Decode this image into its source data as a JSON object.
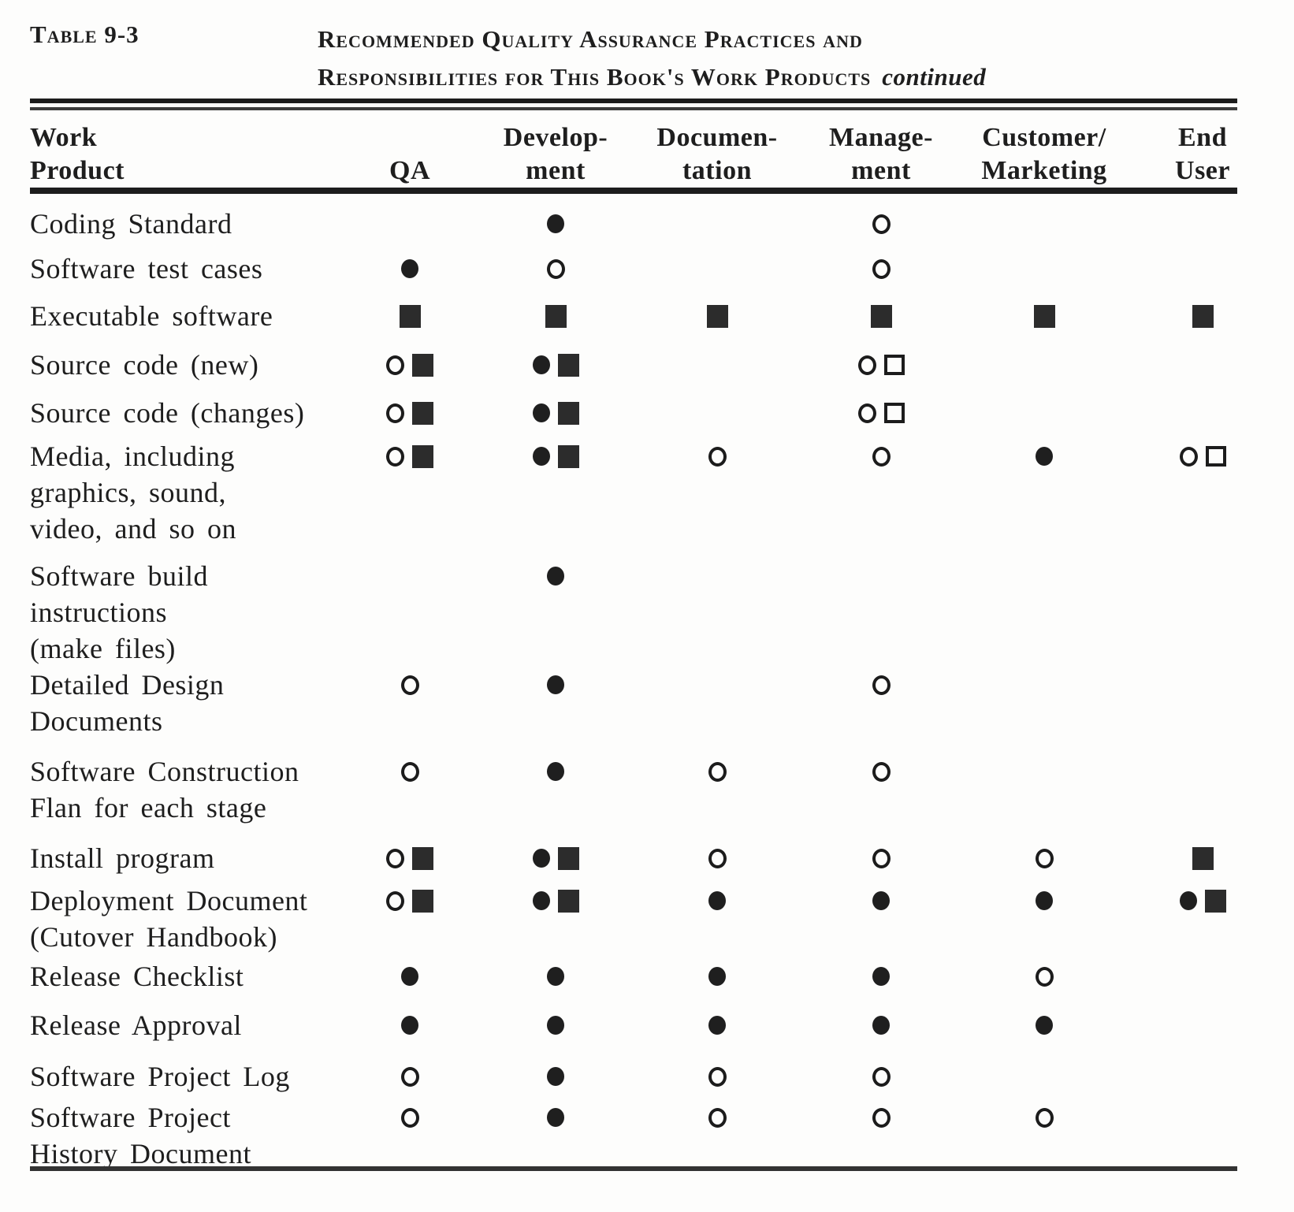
{
  "caption": {
    "table_label": "Table 9-3",
    "title_line1": "Recommended Quality Assurance Practices and",
    "title_line2": "Responsibilities for This Book's Work Products",
    "continued": "continued"
  },
  "table": {
    "columns": [
      {
        "key": "product",
        "label": "Work\nProduct"
      },
      {
        "key": "qa",
        "label": "QA"
      },
      {
        "key": "development",
        "label": "Develop-\nment"
      },
      {
        "key": "documentation",
        "label": "Documen-\ntation"
      },
      {
        "key": "management",
        "label": "Manage-\nment"
      },
      {
        "key": "customer_marketing",
        "label": "Customer/\nMarketing"
      },
      {
        "key": "end_user",
        "label": "End\nUser"
      }
    ],
    "symbol_legend": {
      "filled-circle": "●",
      "open-circle": "○",
      "filled-square": "■",
      "open-square": "□"
    },
    "rows": [
      {
        "product": "Coding Standard",
        "qa": [],
        "development": [
          "filled-circle"
        ],
        "documentation": [],
        "management": [
          "open-circle"
        ],
        "customer_marketing": [],
        "end_user": []
      },
      {
        "product": "Software test cases",
        "qa": [
          "filled-circle"
        ],
        "development": [
          "open-circle"
        ],
        "documentation": [],
        "management": [
          "open-circle"
        ],
        "customer_marketing": [],
        "end_user": []
      },
      {
        "product": "Executable software",
        "qa": [
          "filled-square"
        ],
        "development": [
          "filled-square"
        ],
        "documentation": [
          "filled-square"
        ],
        "management": [
          "filled-square"
        ],
        "customer_marketing": [
          "filled-square"
        ],
        "end_user": [
          "filled-square"
        ]
      },
      {
        "product": "Source code (new)",
        "qa": [
          "open-circle",
          "filled-square"
        ],
        "development": [
          "filled-circle",
          "filled-square"
        ],
        "documentation": [],
        "management": [
          "open-circle",
          "open-square"
        ],
        "customer_marketing": [],
        "end_user": []
      },
      {
        "product": "Source code (changes)",
        "qa": [
          "open-circle",
          "filled-square"
        ],
        "development": [
          "filled-circle",
          "filled-square"
        ],
        "documentation": [],
        "management": [
          "open-circle",
          "open-square"
        ],
        "customer_marketing": [],
        "end_user": []
      },
      {
        "product": "Media, including\ngraphics, sound,\nvideo, and so on",
        "qa": [
          "open-circle",
          "filled-square"
        ],
        "development": [
          "filled-circle",
          "filled-square"
        ],
        "documentation": [
          "open-circle"
        ],
        "management": [
          "open-circle"
        ],
        "customer_marketing": [
          "filled-circle"
        ],
        "end_user": [
          "open-circle",
          "open-square"
        ]
      },
      {
        "product": "Software build\ninstructions\n(make files)",
        "qa": [],
        "development": [
          "filled-circle"
        ],
        "documentation": [],
        "management": [],
        "customer_marketing": [],
        "end_user": []
      },
      {
        "product": "Detailed Design\nDocuments",
        "qa": [
          "open-circle"
        ],
        "development": [
          "filled-circle"
        ],
        "documentation": [],
        "management": [
          "open-circle"
        ],
        "customer_marketing": [],
        "end_user": []
      },
      {
        "product": "Software Construction\nFlan for each stage",
        "qa": [
          "open-circle"
        ],
        "development": [
          "filled-circle"
        ],
        "documentation": [
          "open-circle"
        ],
        "management": [
          "open-circle"
        ],
        "customer_marketing": [],
        "end_user": []
      },
      {
        "product": "Install program",
        "qa": [
          "open-circle",
          "filled-square"
        ],
        "development": [
          "filled-circle",
          "filled-square"
        ],
        "documentation": [
          "open-circle"
        ],
        "management": [
          "open-circle"
        ],
        "customer_marketing": [
          "open-circle"
        ],
        "end_user": [
          "filled-square"
        ]
      },
      {
        "product": "Deployment Document\n(Cutover Handbook)",
        "qa": [
          "open-circle",
          "filled-square"
        ],
        "development": [
          "filled-circle",
          "filled-square"
        ],
        "documentation": [
          "filled-circle"
        ],
        "management": [
          "filled-circle"
        ],
        "customer_marketing": [
          "filled-circle"
        ],
        "end_user": [
          "filled-circle",
          "filled-square"
        ]
      },
      {
        "product": "Release Checklist",
        "qa": [
          "filled-circle"
        ],
        "development": [
          "filled-circle"
        ],
        "documentation": [
          "filled-circle"
        ],
        "management": [
          "filled-circle"
        ],
        "customer_marketing": [
          "open-circle"
        ],
        "end_user": []
      },
      {
        "product": "Release Approval",
        "qa": [
          "filled-circle"
        ],
        "development": [
          "filled-circle"
        ],
        "documentation": [
          "filled-circle"
        ],
        "management": [
          "filled-circle"
        ],
        "customer_marketing": [
          "filled-circle"
        ],
        "end_user": []
      },
      {
        "product": "Software Project Log",
        "qa": [
          "open-circle"
        ],
        "development": [
          "filled-circle"
        ],
        "documentation": [
          "open-circle"
        ],
        "management": [
          "open-circle"
        ],
        "customer_marketing": [],
        "end_user": []
      },
      {
        "product": "Software Project\nHistory Document",
        "qa": [
          "open-circle"
        ],
        "development": [
          "filled-circle"
        ],
        "documentation": [
          "open-circle"
        ],
        "management": [
          "open-circle"
        ],
        "customer_marketing": [
          "open-circle"
        ],
        "end_user": []
      }
    ]
  }
}
